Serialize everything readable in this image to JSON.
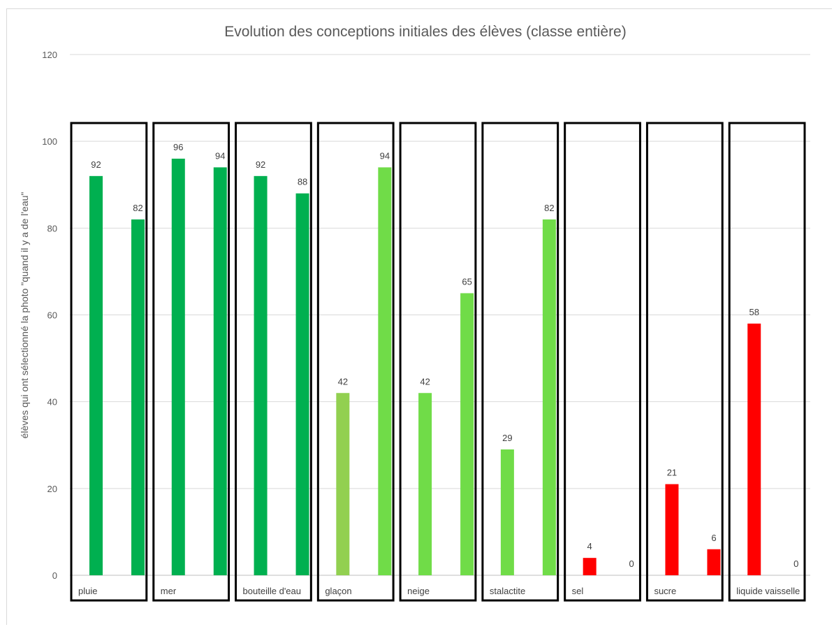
{
  "chart_data": {
    "type": "bar",
    "title": "Evolution des conceptions initiales des élèves (classe entière)",
    "xlabel": "",
    "ylabel": "élèves qui ont sélectionné la photo \"quand il y a de l'eau\"",
    "ylim": [
      0,
      120
    ],
    "yticks": [
      0,
      20,
      40,
      60,
      80,
      100,
      120
    ],
    "grid": true,
    "categories": [
      "pluie",
      "mer",
      "bouteille d'eau",
      "glaçon",
      "neige",
      "stalactite",
      "sel",
      "sucre",
      "liquide vaisselle"
    ],
    "series": [
      {
        "values": [
          92,
          96,
          92,
          42,
          42,
          29,
          4,
          21,
          58
        ],
        "colors": [
          "#00b050",
          "#00b050",
          "#00b050",
          "#92d050",
          "#70dc48",
          "#70dc48",
          "#ff0000",
          "#ff0000",
          "#ff0000"
        ]
      },
      {
        "values": [
          82,
          94,
          88,
          94,
          65,
          82,
          0,
          6,
          0
        ],
        "colors": [
          "#00b050",
          "#00b050",
          "#00b050",
          "#70dc48",
          "#70dc48",
          "#70dc48",
          "#ff0000",
          "#ff0000",
          "#ff0000"
        ]
      }
    ],
    "data_labels": true,
    "highlight_boxes": true
  }
}
